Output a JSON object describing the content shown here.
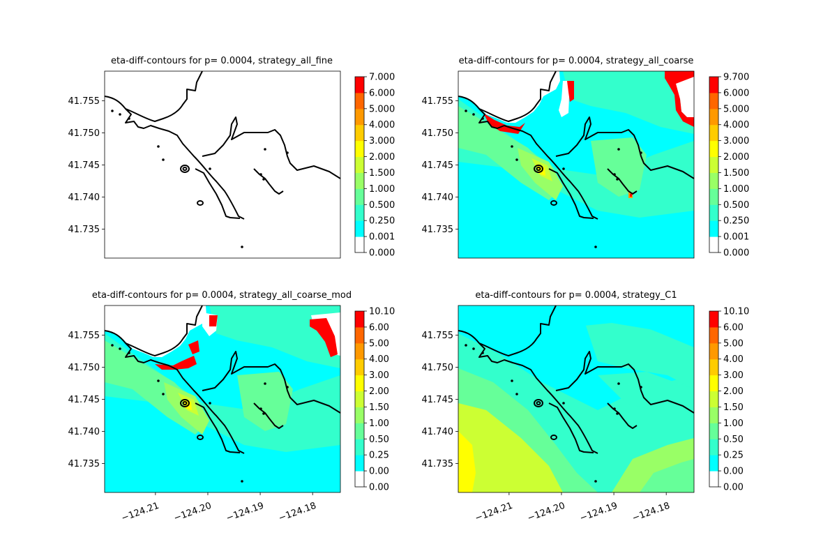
{
  "figure": {
    "background": "#ffffff"
  },
  "axes": {
    "y_ticks": [
      41.735,
      41.74,
      41.745,
      41.75,
      41.755
    ],
    "y_tick_labels": [
      "41.735",
      "41.740",
      "41.745",
      "41.750",
      "41.755"
    ],
    "x_ticks": [
      -124.21,
      -124.2,
      -124.19,
      -124.18
    ],
    "x_tick_labels": [
      "−124.21",
      "−124.20",
      "−124.19",
      "−124.18"
    ],
    "xlim": [
      -124.2197,
      -124.1747
    ],
    "ylim": [
      41.7305,
      41.7596
    ]
  },
  "chart_data": [
    {
      "type": "heatmap",
      "title": "eta-diff-contours for p= 0.0004, strategy_all_fine",
      "colorbar_ticks": [
        "0.000",
        "0.001",
        "0.250",
        "0.500",
        "1.000",
        "1.500",
        "2.000",
        "3.000",
        "4.000",
        "5.000",
        "6.000",
        "7.000"
      ],
      "field": "none",
      "show_x_ticks": false
    },
    {
      "type": "heatmap",
      "title": "eta-diff-contours for p= 0.0004, strategy_all_coarse",
      "colorbar_ticks": [
        "0.000",
        "0.001",
        "0.250",
        "0.500",
        "1.000",
        "1.500",
        "2.000",
        "3.000",
        "4.000",
        "5.000",
        "6.000",
        "9.700"
      ],
      "field": "coarse",
      "show_x_ticks": false
    },
    {
      "type": "heatmap",
      "title": "eta-diff-contours for p= 0.0004, strategy_all_coarse_mod",
      "colorbar_ticks": [
        "0.00",
        "0.00",
        "0.25",
        "0.50",
        "1.00",
        "1.50",
        "2.00",
        "3.00",
        "4.00",
        "5.00",
        "6.00",
        "10.10"
      ],
      "field": "coarse_mod",
      "show_x_ticks": true
    },
    {
      "type": "heatmap",
      "title": "eta-diff-contours for p= 0.0004, strategy_C1",
      "colorbar_ticks": [
        "0.00",
        "0.00",
        "0.25",
        "0.50",
        "1.00",
        "1.50",
        "2.00",
        "3.00",
        "4.00",
        "5.00",
        "6.00",
        "10.10"
      ],
      "field": "c1",
      "show_x_ticks": true
    }
  ],
  "colormap": [
    "#ffffff",
    "#00ffff",
    "#33ffcc",
    "#66ff99",
    "#99ff66",
    "#ccff33",
    "#ffff00",
    "#ffcc00",
    "#ff9900",
    "#ff6600",
    "#ff0000"
  ],
  "coastline_color": "#000000"
}
